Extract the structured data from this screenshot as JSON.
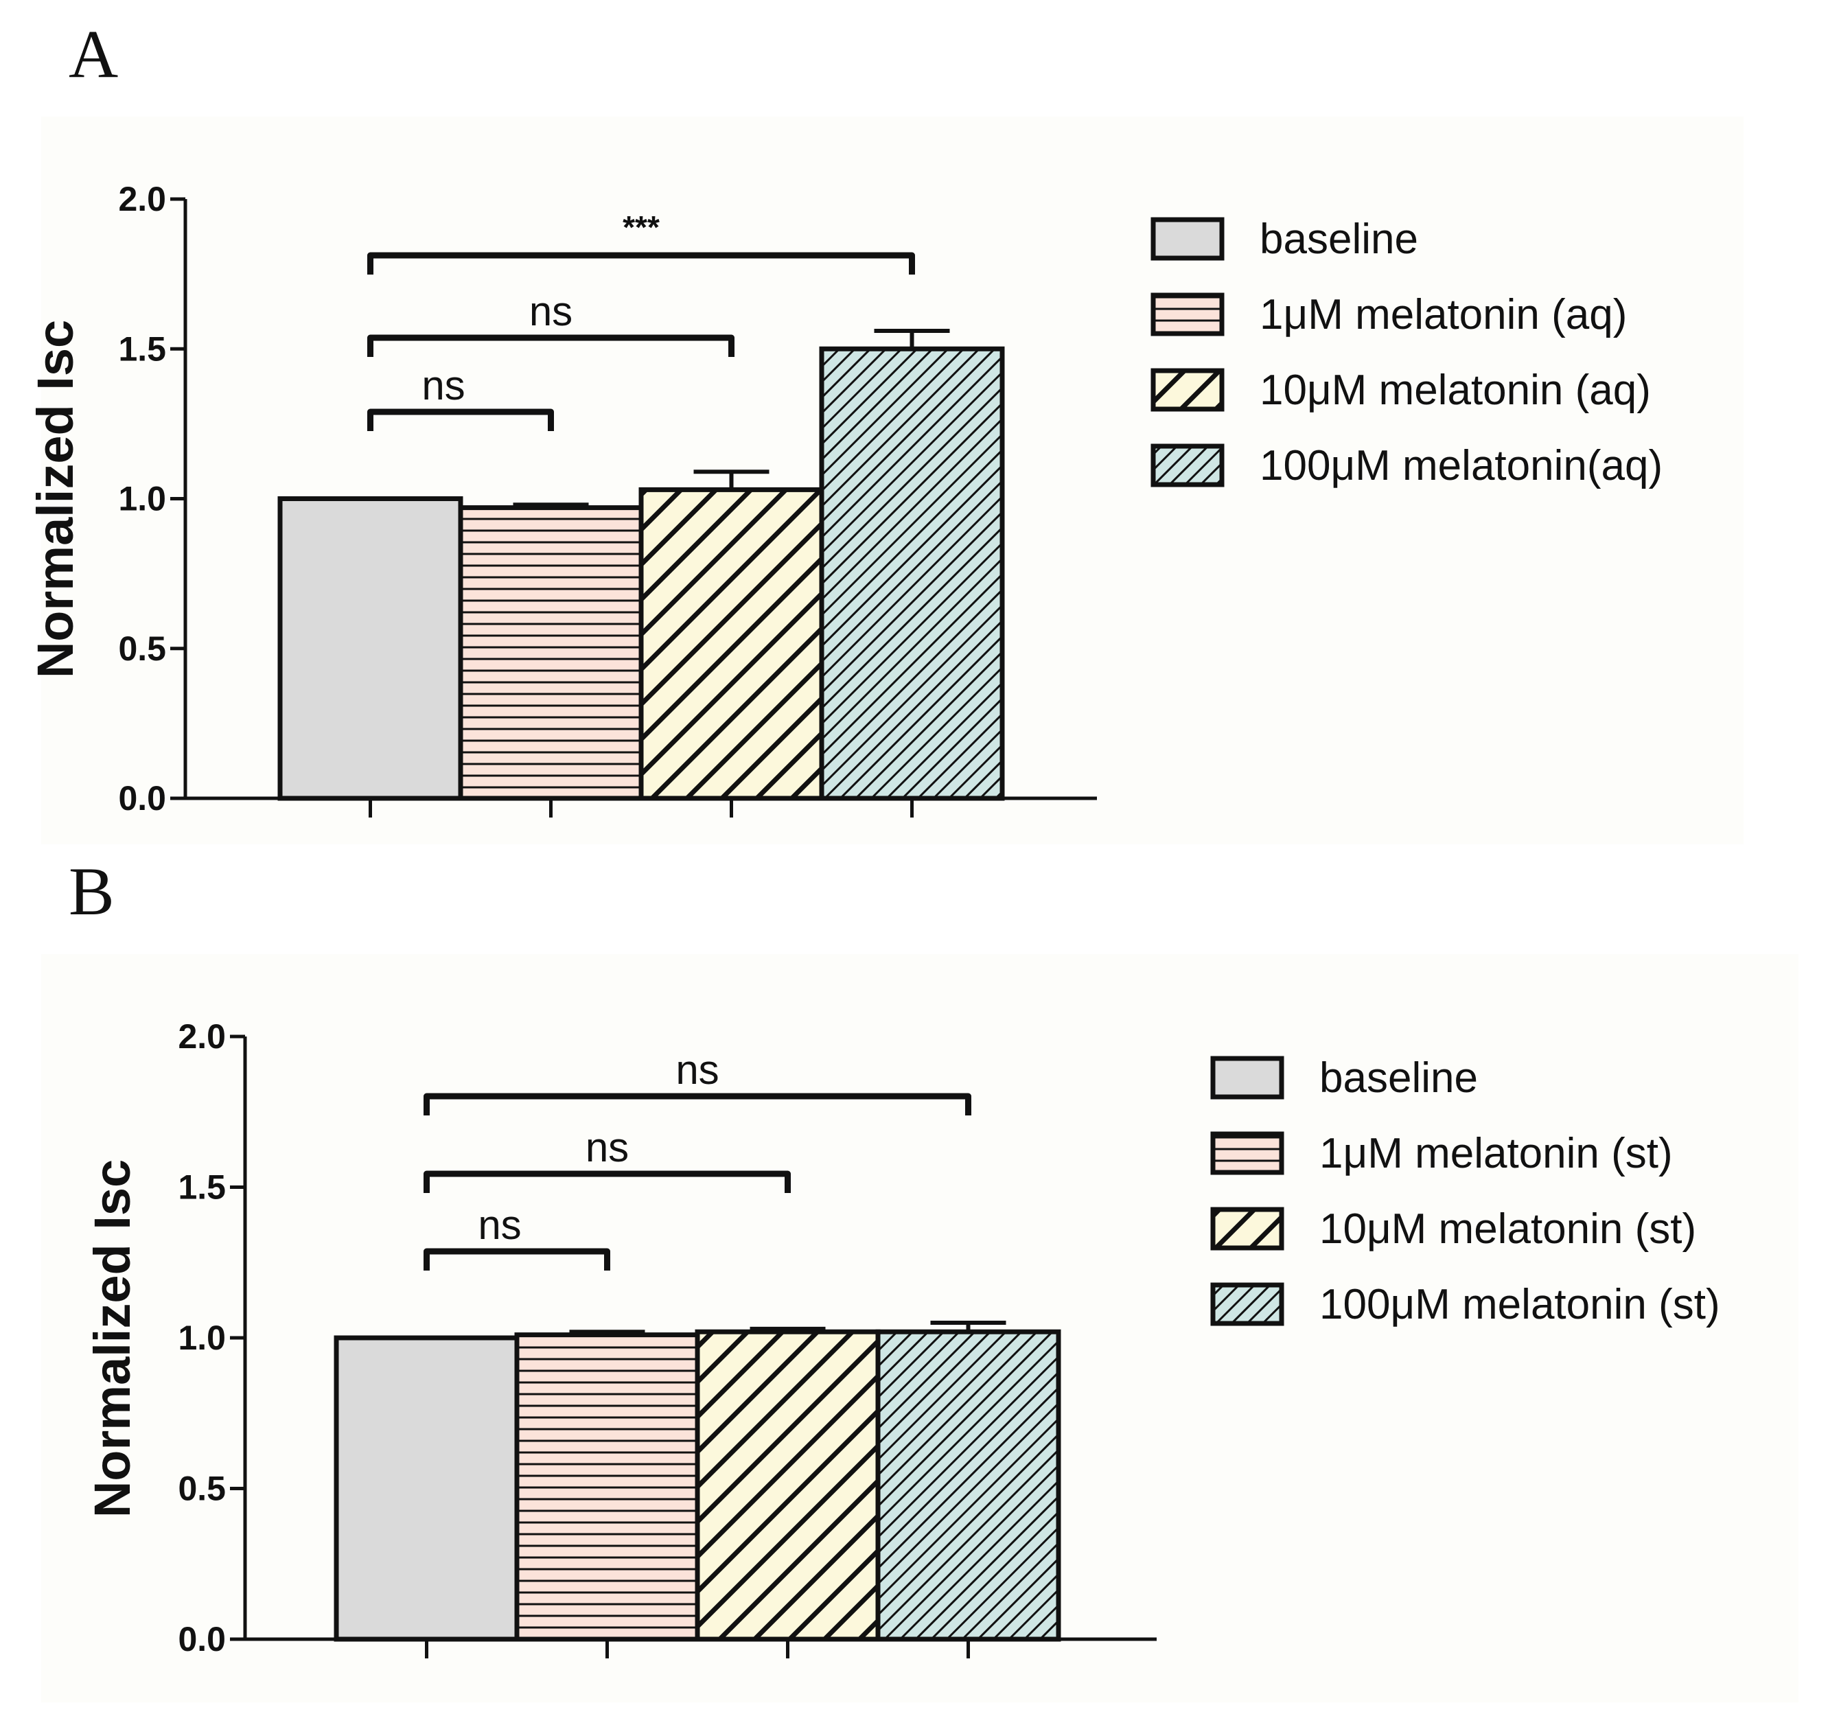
{
  "chart_data": [
    {
      "type": "bar",
      "panel": "A",
      "ylabel": "Normalized Isc",
      "xlabel": "",
      "ylim": [
        0,
        2.0
      ],
      "yticks": [
        "0.0",
        "0.5",
        "1.0",
        "1.5",
        "2.0"
      ],
      "yticks_values": [
        0,
        0.5,
        1.0,
        1.5,
        2.0
      ],
      "categories": [
        "baseline",
        "1μM melatonin (aq)",
        "10μM melatonin (aq)",
        "100μM melatonin(aq)"
      ],
      "values": [
        1.0,
        0.97,
        1.03,
        1.5
      ],
      "errors": [
        0.0,
        0.01,
        0.06,
        0.06
      ],
      "legend_position": "right",
      "significance": [
        {
          "from": 0,
          "to": 1,
          "label": "ns"
        },
        {
          "from": 0,
          "to": 2,
          "label": "ns"
        },
        {
          "from": 0,
          "to": 3,
          "label": "***"
        }
      ]
    },
    {
      "type": "bar",
      "panel": "B",
      "ylabel": "Normalized Isc",
      "xlabel": "",
      "ylim": [
        0,
        2.0
      ],
      "yticks": [
        "0.0",
        "0.5",
        "1.0",
        "1.5",
        "2.0"
      ],
      "yticks_values": [
        0,
        0.5,
        1.0,
        1.5,
        2.0
      ],
      "categories": [
        "baseline",
        "1μM melatonin (st)",
        "10μM melatonin (st)",
        "100μM melatonin (st)"
      ],
      "values": [
        1.0,
        1.01,
        1.02,
        1.02
      ],
      "errors": [
        0.0,
        0.01,
        0.01,
        0.03
      ],
      "legend_position": "right",
      "significance": [
        {
          "from": 0,
          "to": 1,
          "label": "ns"
        },
        {
          "from": 0,
          "to": 2,
          "label": "ns"
        },
        {
          "from": 0,
          "to": 3,
          "label": "ns"
        }
      ]
    }
  ],
  "colors": {
    "baseline": "#dadada",
    "salmon": "#fbe3da",
    "cream": "#fcf8dc",
    "teal": "#cfe6e4",
    "stroke": "#111111",
    "panel_bg": "#fdfdfa"
  }
}
